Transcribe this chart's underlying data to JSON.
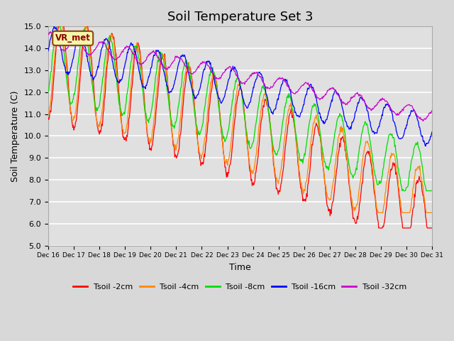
{
  "title": "Soil Temperature Set 3",
  "xlabel": "Time",
  "ylabel": "Soil Temperature (C)",
  "ylim": [
    5.0,
    15.0
  ],
  "yticks": [
    5.0,
    6.0,
    7.0,
    8.0,
    9.0,
    10.0,
    11.0,
    12.0,
    13.0,
    14.0,
    15.0
  ],
  "xlim_start": 16,
  "xlim_end": 31,
  "xtick_labels": [
    "Dec 16",
    "Dec 17",
    "Dec 18",
    "Dec 19",
    "Dec 20",
    "Dec 21",
    "Dec 22",
    "Dec 23",
    "Dec 24",
    "Dec 25",
    "Dec 26",
    "Dec 27",
    "Dec 28",
    "Dec 29",
    "Dec 30",
    "Dec 31"
  ],
  "series_colors": [
    "#ff0000",
    "#ff8800",
    "#00dd00",
    "#0000ff",
    "#cc00cc"
  ],
  "series_labels": [
    "Tsoil -2cm",
    "Tsoil -4cm",
    "Tsoil -8cm",
    "Tsoil -16cm",
    "Tsoil -32cm"
  ],
  "legend_label": "VR_met",
  "fig_facecolor": "#d8d8d8",
  "ax_facecolor": "#e0e0e0",
  "grid_color": "#ffffff",
  "title_fontsize": 13,
  "label_fontsize": 9,
  "tick_fontsize": 8
}
